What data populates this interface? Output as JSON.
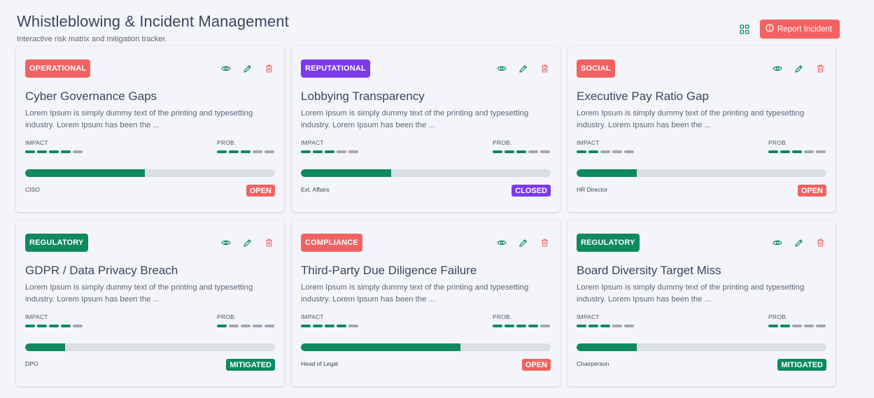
{
  "header": {
    "title": "Whistleblowing & Incident Management",
    "subtitle": "Interactive risk matrix and mitigation tracker.",
    "report_button": "Report Incident"
  },
  "colors": {
    "accent_green": "#0e8a5e",
    "accent_red": "#f36262",
    "purple": "#7c3aed",
    "dash_off": "#a3a6b4"
  },
  "labels": {
    "impact": "IMPACT",
    "probability": "PROB."
  },
  "cards": [
    {
      "category": "OPERATIONAL",
      "category_color": "#f36262",
      "title": "Cyber Governance Gaps",
      "description": "Lorem Ipsum is simply dummy text of the printing and typesetting industry. Lorem Ipsum has been the ...",
      "impact": 4,
      "probability": 3,
      "progress": 48,
      "owner": "CISO",
      "status": "OPEN",
      "status_color": "#f36262"
    },
    {
      "category": "REPUTATIONAL",
      "category_color": "#7c3aed",
      "title": "Lobbying Transparency",
      "description": "Lorem Ipsum is simply dummy text of the printing and typesetting industry. Lorem Ipsum has been the ...",
      "impact": 3,
      "probability": 3,
      "progress": 36,
      "owner": "Ext. Affairs",
      "status": "CLOSED",
      "status_color": "#7c3aed"
    },
    {
      "category": "SOCIAL",
      "category_color": "#f36262",
      "title": "Executive Pay Ratio Gap",
      "description": "Lorem Ipsum is simply dummy text of the printing and typesetting industry. Lorem Ipsum has been the ...",
      "impact": 2,
      "probability": 3,
      "progress": 24,
      "owner": "HR Director",
      "status": "OPEN",
      "status_color": "#f36262"
    },
    {
      "category": "REGULATORY",
      "category_color": "#0e8a5e",
      "title": "GDPR / Data Privacy Breach",
      "description": "Lorem Ipsum is simply dummy text of the printing and typesetting industry. Lorem Ipsum has been the ...",
      "impact": 4,
      "probability": 1,
      "progress": 16,
      "owner": "DPO",
      "status": "MITIGATED",
      "status_color": "#0e8a5e"
    },
    {
      "category": "COMPLIANCE",
      "category_color": "#f36262",
      "title": "Third-Party Due Diligence Failure",
      "description": "Lorem Ipsum is simply dummy text of the printing and typesetting industry. Lorem Ipsum has been the ...",
      "impact": 4,
      "probability": 4,
      "progress": 64,
      "owner": "Head of Legal",
      "status": "OPEN",
      "status_color": "#f36262"
    },
    {
      "category": "REGULATORY",
      "category_color": "#0e8a5e",
      "title": "Board Diversity Target Miss",
      "description": "Lorem Ipsum is simply dummy text of the printing and typesetting industry. Lorem Ipsum has been the ...",
      "impact": 3,
      "probability": 2,
      "progress": 24,
      "owner": "Chairperson",
      "status": "MITIGATED",
      "status_color": "#0e8a5e"
    }
  ]
}
